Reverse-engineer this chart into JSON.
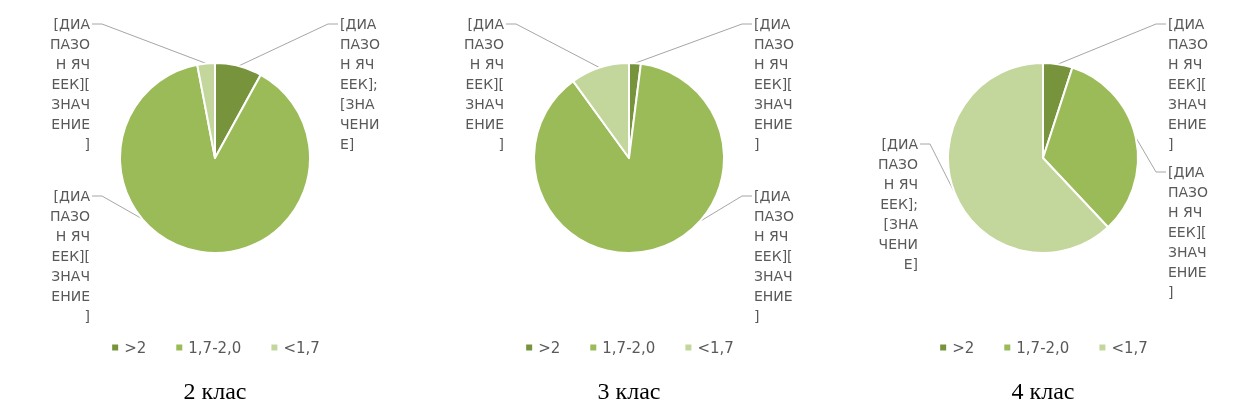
{
  "chart_data": [
    {
      "type": "pie",
      "title": "2 клас",
      "categories": [
        ">2",
        "1,7-2,0",
        "<1,7"
      ],
      "values": [
        8,
        89,
        3
      ],
      "colors": [
        "#77933c",
        "#9bbb59",
        "#c3d69b"
      ],
      "value_labels": [
        "[ДИАПАЗОН ЯЧЕЕК];[ЗНАЧЕНИЕ]",
        "[ДИАПАЗОН ЯЧЕЕК][ЗНАЧЕНИЕ]",
        "[ДИАПАЗОН ЯЧЕЕК][ЗНАЧЕНИЕ]"
      ],
      "legend": "bottom"
    },
    {
      "type": "pie",
      "title": "3 клас",
      "categories": [
        ">2",
        "1,7-2,0",
        "<1,7"
      ],
      "values": [
        2,
        88,
        10
      ],
      "colors": [
        "#77933c",
        "#9bbb59",
        "#c3d69b"
      ],
      "value_labels": [
        "[ДИАПАЗОН ЯЧЕЕК][ЗНАЧЕНИЕ]",
        "[ДИАПАЗОН ЯЧЕЕК][ЗНАЧЕНИЕ]",
        "[ДИАПАЗОН ЯЧЕЕК][ЗНАЧЕНИЕ]"
      ],
      "legend": "bottom"
    },
    {
      "type": "pie",
      "title": "4 клас",
      "categories": [
        ">2",
        "1,7-2,0",
        "<1,7"
      ],
      "values": [
        5,
        33,
        62
      ],
      "colors": [
        "#77933c",
        "#9bbb59",
        "#c3d69b"
      ],
      "value_labels": [
        "[ДИАПАЗОН ЯЧЕЕК][ЗНАЧЕНИЕ]",
        "[ДИАПАЗОН ЯЧЕЕК][ЗНАЧЕНИЕ]",
        "[ДИАПАЗОН ЯЧЕЕК];[ЗНАЧЕНИЕ]"
      ],
      "legend": "bottom"
    }
  ]
}
